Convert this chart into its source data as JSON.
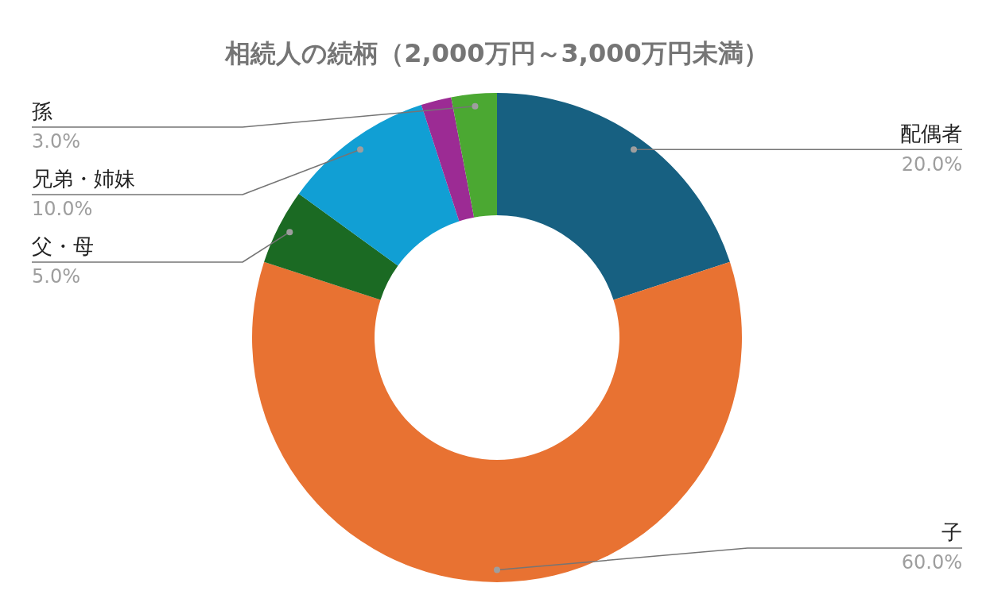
{
  "chart_data": {
    "type": "donut",
    "title": "相続人の続柄（2,000万円～3,000万円未満）",
    "categories": [
      "配偶者",
      "子",
      "父・母",
      "兄弟・姉妹",
      null,
      "孫"
    ],
    "values": [
      20,
      60,
      5,
      10,
      2,
      3
    ],
    "colors": [
      "#176081",
      "#e87232",
      "#1b6a23",
      "#119fd4",
      "#9c2b94",
      "#4ba832"
    ],
    "value_labels": [
      "20.0%",
      "60.0%",
      "5.0%",
      "10.0%",
      null,
      "3.0%"
    ],
    "legend": false
  }
}
